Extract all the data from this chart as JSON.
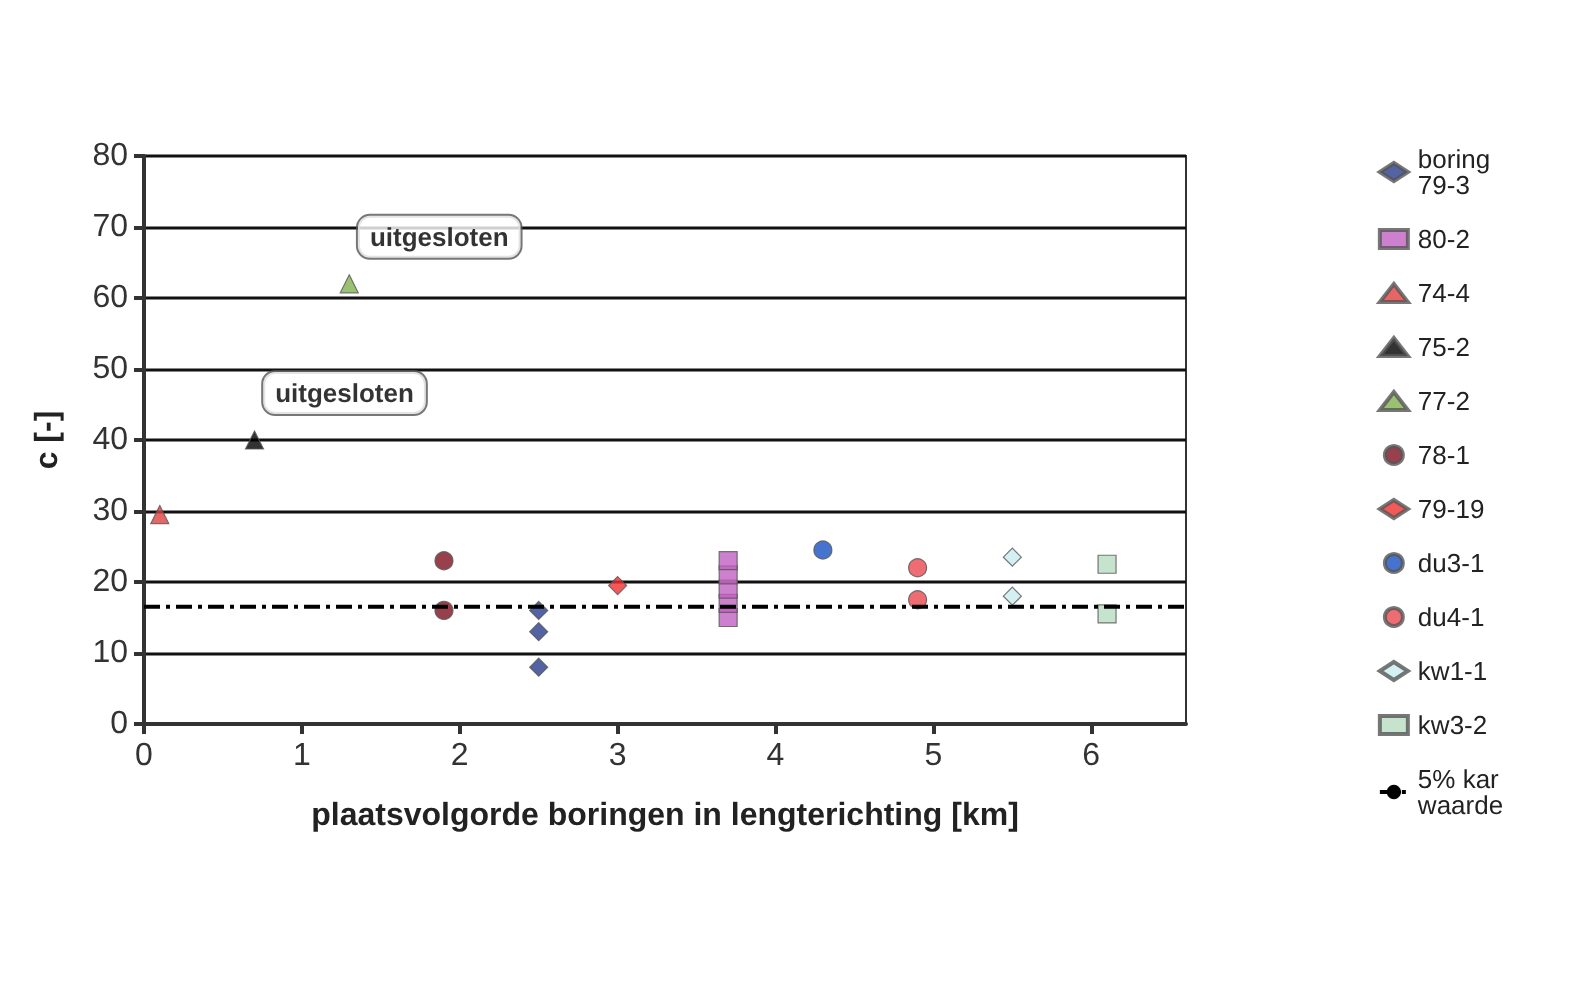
{
  "chart_data": {
    "type": "scatter",
    "xlabel": "plaatsvolgorde boringen in lengterichting [km]",
    "ylabel": "c [-]",
    "xlim": [
      0,
      6.6
    ],
    "xticks": [
      0,
      1,
      2,
      3,
      4,
      5,
      6
    ],
    "ylim": [
      0,
      80
    ],
    "yticks": [
      0,
      10,
      20,
      30,
      40,
      50,
      60,
      70,
      80
    ],
    "grid": "y",
    "legend": "right",
    "annotations": [
      {
        "text": "uitgesloten",
        "x": 1.3,
        "y": 62
      },
      {
        "text": "uitgesloten",
        "x": 0.7,
        "y": 40
      }
    ],
    "series": [
      {
        "name": "boring 79-3",
        "color": "#283c8c",
        "marker": "diamond",
        "x": [
          2.5,
          2.5,
          2.5
        ],
        "values": [
          16,
          13,
          8
        ]
      },
      {
        "name": "80-2",
        "color": "#c060c0",
        "marker": "square",
        "x": [
          3.7,
          3.7,
          3.7,
          3.7,
          3.7
        ],
        "values": [
          15,
          17,
          19,
          21,
          23
        ]
      },
      {
        "name": "74-4",
        "color": "#e04040",
        "marker": "triangle",
        "x": [
          0.1
        ],
        "values": [
          29.5
        ]
      },
      {
        "name": "75-2",
        "color": "#000000",
        "marker": "triangle",
        "x": [
          0.7
        ],
        "values": [
          40
        ]
      },
      {
        "name": "77-2",
        "color": "#80b050",
        "marker": "triangle",
        "x": [
          1.3
        ],
        "values": [
          62
        ]
      },
      {
        "name": "78-1",
        "color": "#801020",
        "marker": "circle",
        "x": [
          1.9,
          1.9
        ],
        "values": [
          23,
          16
        ]
      },
      {
        "name": "79-19",
        "color": "#f03030",
        "marker": "diamond",
        "x": [
          3.0
        ],
        "values": [
          19.5
        ]
      },
      {
        "name": "du3-1",
        "color": "#1850c0",
        "marker": "circle",
        "x": [
          4.3
        ],
        "values": [
          24.5
        ]
      },
      {
        "name": "du4-1",
        "color": "#e84850",
        "marker": "circle",
        "x": [
          4.9,
          4.9
        ],
        "values": [
          22,
          17.5
        ]
      },
      {
        "name": "kw1-1",
        "color": "#c8ecf0",
        "marker": "diamond",
        "x": [
          5.5,
          5.5
        ],
        "values": [
          23.5,
          18
        ]
      },
      {
        "name": "kw3-2",
        "color": "#b8dcc0",
        "marker": "square",
        "x": [
          6.1,
          6.1
        ],
        "values": [
          22.5,
          15.5
        ]
      },
      {
        "name": "5% kar waarde",
        "type": "line",
        "color": "#000000",
        "line_style": "dashed",
        "marker": "none",
        "x": [
          0,
          6.6
        ],
        "values": [
          16.5,
          16.5
        ]
      }
    ]
  }
}
